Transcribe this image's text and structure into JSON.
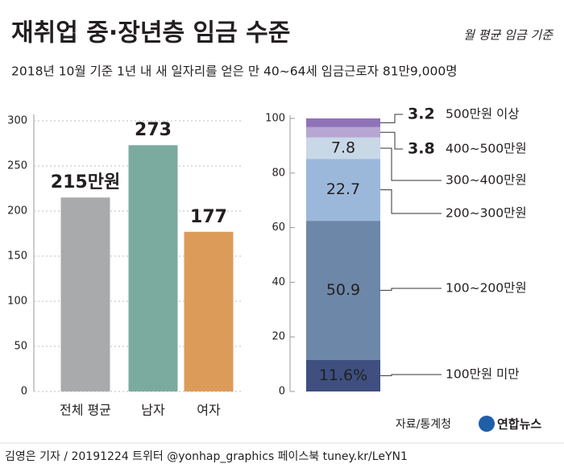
{
  "title": "재취업 중·장년층 임금 수준",
  "note": "월 평균 임금 기준",
  "subtitle": "2018년 10월 기준 1년 내 새 일자리를 얻은 만 40~64세 임금근로자 81만9,000명",
  "source": "자료/통계청",
  "logo": "연합뉴스",
  "footer": "김영은 기자 / 20191224  트위터 @yonhap_graphics  페이스북 tuney.kr/LeYN1",
  "chart_data": [
    {
      "type": "bar",
      "categories": [
        "전체 평균",
        "남자",
        "여자"
      ],
      "values": [
        215,
        273,
        177
      ],
      "value_labels": [
        "215만원",
        "273",
        "177"
      ],
      "colors": [
        "#a9aaac",
        "#7bab9f",
        "#dd9b5a"
      ],
      "ylim": [
        0,
        300
      ],
      "yticks": [
        0,
        50,
        100,
        150,
        200,
        250,
        300
      ],
      "grid": true
    },
    {
      "type": "stacked-bar",
      "series": [
        {
          "name": "100만원 미만",
          "color": "#3e4f80",
          "values": [
            11.6
          ],
          "value_labels": [
            "11.6%"
          ]
        },
        {
          "name": "100~200만원",
          "color": "#6d87a8",
          "values": [
            50.9
          ]
        },
        {
          "name": "200~300만원",
          "color": "#9bb8db",
          "values": [
            22.7
          ]
        },
        {
          "name": "300~400만원",
          "color": "#c8d8e6",
          "values": [
            7.8
          ]
        },
        {
          "name": "400~500만원",
          "color": "#b7a6d3",
          "values": [
            3.8
          ]
        },
        {
          "name": "500만원 이상",
          "color": "#8f73b8",
          "values": [
            3.2
          ]
        }
      ],
      "ylim": [
        0,
        100
      ],
      "yticks": [
        0,
        20,
        40,
        60,
        80,
        100
      ]
    }
  ]
}
